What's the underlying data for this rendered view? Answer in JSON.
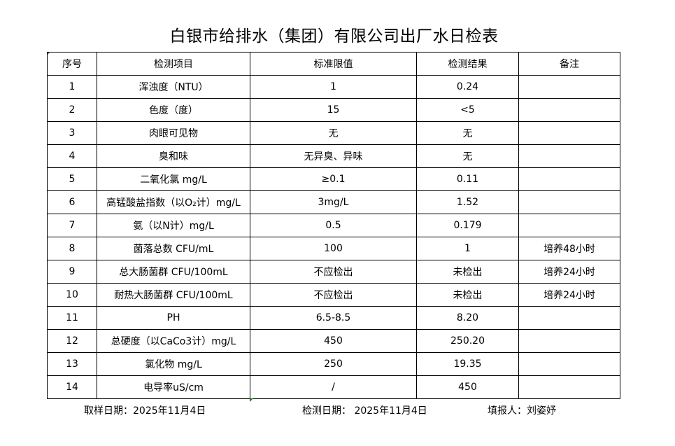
{
  "title": "白银市给排水（集团）有限公司出厂水日检表",
  "headers": [
    "序号",
    "检测项目",
    "标准限值",
    "检测结果",
    "备注"
  ],
  "rows": [
    {
      "no": "1",
      "item": "浑浊度（NTU）",
      "limit": "1",
      "result": "0.24",
      "note": ""
    },
    {
      "no": "2",
      "item": "色度（度）",
      "limit": "15",
      "result": "<5",
      "note": ""
    },
    {
      "no": "3",
      "item": "肉眼可见物",
      "limit": "无",
      "result": "无",
      "note": ""
    },
    {
      "no": "4",
      "item": "臭和味",
      "limit": "无异臭、异味",
      "result": "无",
      "note": ""
    },
    {
      "no": "5",
      "item": "二氧化氯 mg/L",
      "limit": "≥0.1",
      "result": "0.11",
      "note": ""
    },
    {
      "no": "6",
      "item": "高锰酸盐指数（以O₂计）mg/L",
      "limit": "3mg/L",
      "result": "1.52",
      "note": ""
    },
    {
      "no": "7",
      "item": "氨（以N计）mg/L",
      "limit": "0.5",
      "result": "0.179",
      "note": ""
    },
    {
      "no": "8",
      "item": "菌落总数 CFU/mL",
      "limit": "100",
      "result": "1",
      "note": "培养48小时"
    },
    {
      "no": "9",
      "item": "总大肠菌群 CFU/100mL",
      "limit": "不应检出",
      "result": "未检出",
      "note": "培养24小时"
    },
    {
      "no": "10",
      "item": "耐热大肠菌群 CFU/100mL",
      "limit": "不应检出",
      "result": "未检出",
      "note": "培养24小时"
    },
    {
      "no": "11",
      "item": "PH",
      "limit": "6.5-8.5",
      "result": "8.20",
      "note": ""
    },
    {
      "no": "12",
      "item": "总硬度（以CaCo3计）mg/L",
      "limit": "450",
      "result": "250.20",
      "note": ""
    },
    {
      "no": "13",
      "item": "氯化物 mg/L",
      "limit": "250",
      "result": "19.35",
      "note": ""
    },
    {
      "no": "14",
      "item": "电导率uS/cm",
      "limit": "/",
      "result": "450",
      "note": ""
    }
  ],
  "footer": {
    "sample_date": "取样日期：2025年11月4日",
    "test_date": "检测日期： 2025年11月4日",
    "reporter": "填报人：刘姿妤"
  }
}
